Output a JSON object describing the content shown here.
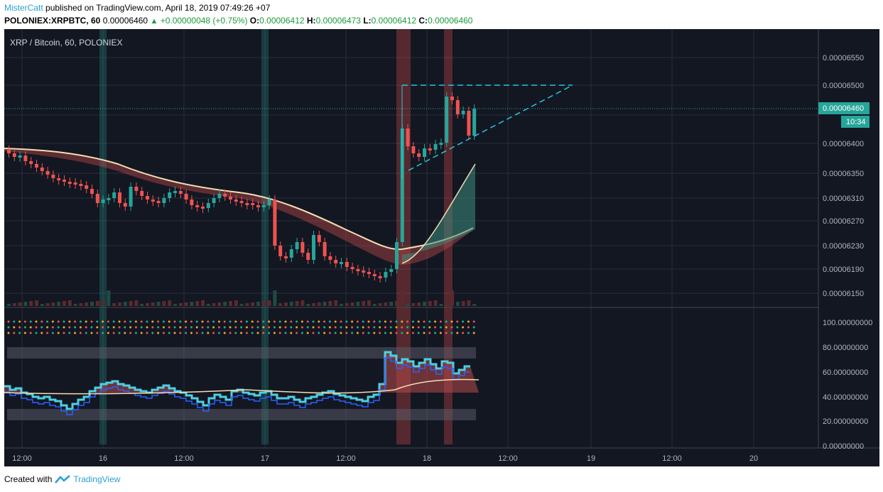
{
  "header": {
    "author": "MisterCatt",
    "published_text": "published on TradingView.com, April 18, 2019 07:49:26 +07",
    "symbol": "POLONIEX:XRPBTC, 60",
    "price": "0.00006460",
    "change": "+0.00000048 (+0.75%)",
    "o_label": "O:",
    "o_val": "0.00006412",
    "h_label": "H:",
    "h_val": "0.00006473",
    "l_label": "L:",
    "l_val": "0.00006412",
    "c_label": "C:",
    "c_val": "0.00006460"
  },
  "chart": {
    "title": "XRP / Bitcoin, 60, POLONIEX",
    "price_axis": [
      "0.00006550",
      "0.00006500",
      "0.00006400",
      "0.00006350",
      "0.00006310",
      "0.00006270",
      "0.00006230",
      "0.00006190",
      "0.00006150"
    ],
    "current_price_label": "0.00006460",
    "countdown_label": "10:34",
    "osc_axis": [
      "100.00000000",
      "80.00000000",
      "60.00000000",
      "40.00000000",
      "20.00000000",
      "0.00000000"
    ],
    "time_axis": [
      "12:00",
      "16",
      "12:00",
      "17",
      "12:00",
      "18",
      "12:00",
      "19",
      "12:00",
      "20"
    ],
    "colors": {
      "bg": "#131722",
      "up": "#26a69a",
      "down": "#ef5350",
      "accent": "#4dd0e1"
    }
  },
  "footer": {
    "created_with": "Created with",
    "brand": "TradingView"
  }
}
